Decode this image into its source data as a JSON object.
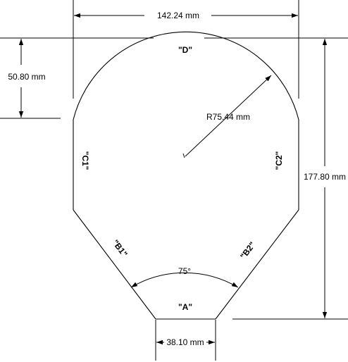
{
  "dimensions": {
    "width": "142.24 mm",
    "arc_height": "50.80 mm",
    "radius": "R75.44 mm",
    "height": "177.80 mm",
    "bottom_width": "38.10 mm",
    "angle": "75°"
  },
  "edges": {
    "a": "\"A\"",
    "b1": "\"B1\"",
    "b2": "\"B2\"",
    "c1": "\"C1\"",
    "c2": "\"C2\"",
    "d": "\"D\""
  }
}
